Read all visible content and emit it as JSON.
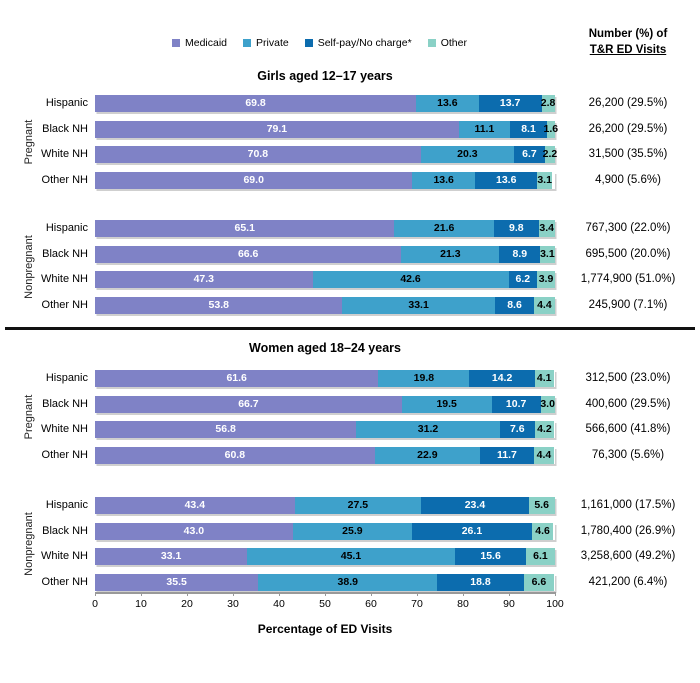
{
  "header": {
    "right_col_line1": "Number (%) of",
    "right_col_line2": "T&R ED Visits"
  },
  "legend": [
    {
      "label": "Medicaid",
      "color": "#7F82C6",
      "value_text_color": "#ffffff"
    },
    {
      "label": "Private",
      "color": "#3EA1CB",
      "value_text_color": "#000000"
    },
    {
      "label": "Self-pay/No charge*",
      "color": "#0C6CAE",
      "value_text_color": "#ffffff"
    },
    {
      "label": "Other",
      "color": "#8AD1C6",
      "value_text_color": "#000000"
    }
  ],
  "chart_data": {
    "type": "bar",
    "stacked": true,
    "orientation": "horizontal",
    "series_names": [
      "Medicaid",
      "Private",
      "Self-pay/No charge*",
      "Other"
    ],
    "xlim": [
      0,
      100
    ],
    "xlabel": "Percentage of ED Visits",
    "axis_ticks": [
      0,
      10,
      20,
      30,
      40,
      50,
      60,
      70,
      80,
      90,
      100
    ],
    "grid": false,
    "legend_position": "top",
    "sections": [
      {
        "title": "Girls aged 12–17 years",
        "groups": [
          {
            "label": "Pregnant",
            "rows": [
              {
                "category": "Hispanic",
                "values": [
                  69.8,
                  13.6,
                  13.7,
                  2.8
                ],
                "annotation": "26,200 (29.5%)"
              },
              {
                "category": "Black NH",
                "values": [
                  79.1,
                  11.1,
                  8.1,
                  1.6
                ],
                "annotation": "26,200 (29.5%)"
              },
              {
                "category": "White NH",
                "values": [
                  70.8,
                  20.3,
                  6.7,
                  2.2
                ],
                "annotation": "31,500 (35.5%)"
              },
              {
                "category": "Other NH",
                "values": [
                  69.0,
                  13.6,
                  13.6,
                  3.1
                ],
                "annotation": "4,900 (5.6%)"
              }
            ]
          },
          {
            "label": "Nonpregnant",
            "rows": [
              {
                "category": "Hispanic",
                "values": [
                  65.1,
                  21.6,
                  9.8,
                  3.4
                ],
                "annotation": "767,300 (22.0%)"
              },
              {
                "category": "Black NH",
                "values": [
                  66.6,
                  21.3,
                  8.9,
                  3.1
                ],
                "annotation": "695,500 (20.0%)"
              },
              {
                "category": "White NH",
                "values": [
                  47.3,
                  42.6,
                  6.2,
                  3.9
                ],
                "annotation": "1,774,900 (51.0%)"
              },
              {
                "category": "Other NH",
                "values": [
                  53.8,
                  33.1,
                  8.6,
                  4.4
                ],
                "annotation": "245,900 (7.1%)"
              }
            ]
          }
        ]
      },
      {
        "title": "Women aged 18–24 years",
        "groups": [
          {
            "label": "Pregnant",
            "rows": [
              {
                "category": "Hispanic",
                "values": [
                  61.6,
                  19.8,
                  14.2,
                  4.1
                ],
                "annotation": "312,500 (23.0%)"
              },
              {
                "category": "Black NH",
                "values": [
                  66.7,
                  19.5,
                  10.7,
                  3.0
                ],
                "annotation": "400,600 (29.5%)"
              },
              {
                "category": "White NH",
                "values": [
                  56.8,
                  31.2,
                  7.6,
                  4.2
                ],
                "annotation": "566,600 (41.8%)"
              },
              {
                "category": "Other NH",
                "values": [
                  60.8,
                  22.9,
                  11.7,
                  4.4
                ],
                "annotation": "76,300 (5.6%)"
              }
            ]
          },
          {
            "label": "Nonpregnant",
            "rows": [
              {
                "category": "Hispanic",
                "values": [
                  43.4,
                  27.5,
                  23.4,
                  5.6
                ],
                "annotation": "1,161,000 (17.5%)"
              },
              {
                "category": "Black NH",
                "values": [
                  43.0,
                  25.9,
                  26.1,
                  4.6
                ],
                "annotation": "1,780,400 (26.9%)"
              },
              {
                "category": "White NH",
                "values": [
                  33.1,
                  45.1,
                  15.6,
                  6.1
                ],
                "annotation": "3,258,600 (49.2%)"
              },
              {
                "category": "Other NH",
                "values": [
                  35.5,
                  38.9,
                  18.8,
                  6.6
                ],
                "annotation": "421,200 (6.4%)"
              }
            ]
          }
        ]
      }
    ]
  }
}
